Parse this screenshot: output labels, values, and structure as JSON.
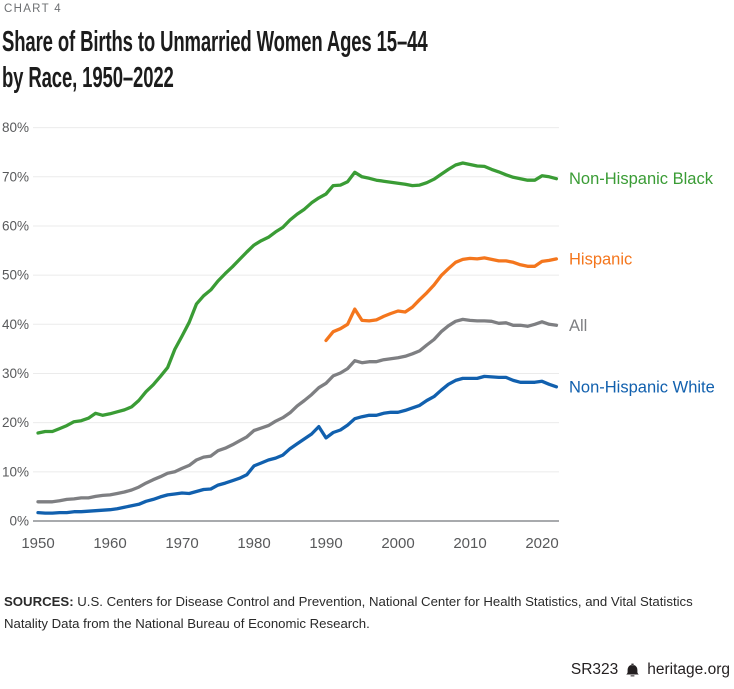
{
  "header": {
    "kicker": "CHART 4",
    "title_line1": "Share of Births to Unmarried Women Ages 15–44",
    "title_line2": "by Race, 1950–2022"
  },
  "chart_data": {
    "type": "line",
    "title": "Share of Births to Unmarried Women Ages 15–44 by Race, 1950–2022",
    "xlabel": "",
    "ylabel": "",
    "grid": true,
    "legend_position": "right",
    "x_axis": {
      "min": 1950,
      "max": 2022,
      "ticks": [
        1950,
        1960,
        1970,
        1980,
        1990,
        2000,
        2010,
        2020
      ]
    },
    "y_axis": {
      "min": 0,
      "max": 80,
      "ticks": [
        0,
        10,
        20,
        30,
        40,
        50,
        60,
        70,
        80
      ],
      "tick_suffix": "%"
    },
    "colors": {
      "grid": "#EBEBEB",
      "axis": "#A8AAAD",
      "tick_text": "#58595B"
    },
    "series": [
      {
        "name": "Non-Hispanic Black",
        "color": "#3A9C35",
        "start_year": 1950,
        "values": [
          17.9,
          18.2,
          18.2,
          18.8,
          19.4,
          20.2,
          20.4,
          20.9,
          21.9,
          21.5,
          21.8,
          22.2,
          22.6,
          23.2,
          24.5,
          26.3,
          27.7,
          29.4,
          31.2,
          34.9,
          37.6,
          40.4,
          44.1,
          45.8,
          47.0,
          48.8,
          50.3,
          51.7,
          53.2,
          54.7,
          56.1,
          57.0,
          57.7,
          58.8,
          59.7,
          61.2,
          62.4,
          63.4,
          64.7,
          65.7,
          66.5,
          68.2,
          68.3,
          69.0,
          70.9,
          70.0,
          69.7,
          69.3,
          69.1,
          68.9,
          68.7,
          68.5,
          68.2,
          68.3,
          68.8,
          69.5,
          70.5,
          71.5,
          72.4,
          72.8,
          72.5,
          72.2,
          72.1,
          71.5,
          71.0,
          70.4,
          69.9,
          69.6,
          69.3,
          69.3,
          70.2,
          70.0,
          69.6
        ]
      },
      {
        "name": "Hispanic",
        "color": "#F4761D",
        "start_year": 1990,
        "values": [
          36.7,
          38.5,
          39.1,
          40.0,
          43.1,
          40.8,
          40.7,
          40.9,
          41.6,
          42.2,
          42.7,
          42.5,
          43.5,
          45.0,
          46.4,
          48.0,
          49.9,
          51.3,
          52.6,
          53.2,
          53.4,
          53.3,
          53.5,
          53.2,
          52.9,
          52.9,
          52.6,
          52.1,
          51.8,
          51.8,
          52.8,
          53.0,
          53.3
        ]
      },
      {
        "name": "All",
        "color": "#7E7F82",
        "start_year": 1950,
        "values": [
          3.9,
          3.9,
          3.9,
          4.1,
          4.4,
          4.5,
          4.7,
          4.7,
          5.0,
          5.2,
          5.3,
          5.6,
          5.9,
          6.3,
          6.9,
          7.7,
          8.4,
          9.0,
          9.7,
          10.0,
          10.7,
          11.3,
          12.4,
          13.0,
          13.2,
          14.3,
          14.8,
          15.5,
          16.3,
          17.1,
          18.4,
          18.9,
          19.4,
          20.3,
          21.0,
          22.0,
          23.4,
          24.5,
          25.7,
          27.1,
          28.0,
          29.5,
          30.1,
          31.0,
          32.6,
          32.2,
          32.4,
          32.4,
          32.8,
          33.0,
          33.2,
          33.5,
          34.0,
          34.6,
          35.8,
          36.9,
          38.5,
          39.7,
          40.6,
          41.0,
          40.8,
          40.7,
          40.7,
          40.6,
          40.2,
          40.3,
          39.8,
          39.8,
          39.6,
          40.0,
          40.5,
          40.0,
          39.8
        ]
      },
      {
        "name": "Non-Hispanic White",
        "color": "#1160AE",
        "start_year": 1950,
        "values": [
          1.7,
          1.6,
          1.6,
          1.7,
          1.7,
          1.9,
          1.9,
          2.0,
          2.1,
          2.2,
          2.3,
          2.5,
          2.8,
          3.1,
          3.4,
          4.0,
          4.4,
          4.9,
          5.3,
          5.5,
          5.7,
          5.6,
          6.0,
          6.4,
          6.5,
          7.3,
          7.7,
          8.2,
          8.7,
          9.4,
          11.2,
          11.8,
          12.4,
          12.8,
          13.4,
          14.7,
          15.7,
          16.7,
          17.7,
          19.2,
          16.9,
          18.0,
          18.5,
          19.5,
          20.8,
          21.2,
          21.5,
          21.5,
          21.9,
          22.1,
          22.1,
          22.5,
          23.0,
          23.5,
          24.5,
          25.3,
          26.6,
          27.8,
          28.6,
          29.0,
          29.0,
          29.0,
          29.4,
          29.3,
          29.2,
          29.2,
          28.6,
          28.2,
          28.2,
          28.2,
          28.4,
          27.8,
          27.3
        ]
      }
    ]
  },
  "footer": {
    "sources_label": "SOURCES:",
    "sources_text": " U.S. Centers for Disease Control and Prevention, National Center for Health Statistics, and Vital Statistics Natality Data from the National Bureau of Economic Research.",
    "report_id": "SR323",
    "site": "heritage.org",
    "bell_icon": "liberty-bell-icon"
  }
}
